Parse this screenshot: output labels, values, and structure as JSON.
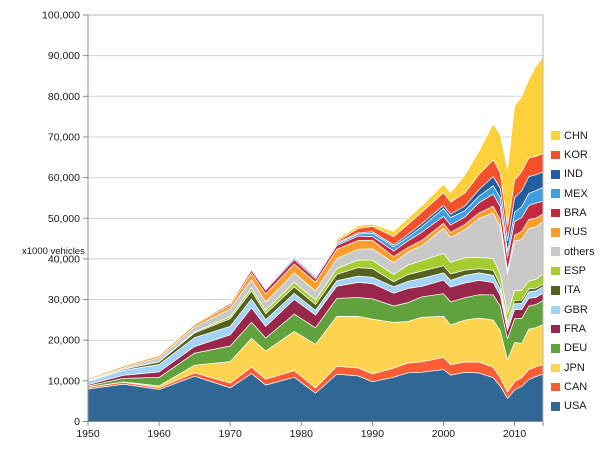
{
  "chart_data": {
    "type": "area",
    "stacked": true,
    "title": "",
    "xlabel": "",
    "ylabel": "x1000 vehicles",
    "unit": "x1000 vehicles",
    "xlim": [
      1950,
      2014
    ],
    "ylim": [
      0,
      100000
    ],
    "grid": true,
    "legend_position": "right",
    "legend_order_top_to_bottom": [
      "CHN",
      "KOR",
      "IND",
      "MEX",
      "BRA",
      "RUS",
      "others",
      "ESP",
      "ITA",
      "GBR",
      "FRA",
      "DEU",
      "JPN",
      "CAN",
      "USA"
    ],
    "x_ticks": [
      1950,
      1960,
      1970,
      1980,
      1990,
      2000,
      2010
    ],
    "y_ticks": [
      0,
      10000,
      20000,
      30000,
      40000,
      50000,
      60000,
      70000,
      80000,
      90000,
      100000
    ],
    "y_tick_labels": [
      "0",
      "10,000",
      "20,000",
      "30,000",
      "40,000",
      "50,000",
      "60,000",
      "70,000",
      "80,000",
      "90,000",
      "100,000"
    ],
    "x": [
      1950,
      1955,
      1960,
      1965,
      1970,
      1973,
      1975,
      1979,
      1982,
      1985,
      1988,
      1990,
      1993,
      1995,
      1997,
      2000,
      2001,
      2003,
      2005,
      2007,
      2008,
      2009,
      2010,
      2011,
      2012,
      2013,
      2014
    ],
    "series": [
      {
        "name": "USA",
        "color": "#2F6795",
        "values": [
          8006,
          9204,
          7905,
          11138,
          8284,
          11800,
          8987,
          10900,
          6986,
          11653,
          11214,
          9783,
          10898,
          11985,
          12119,
          12800,
          11425,
          12115,
          11947,
          10781,
          8672,
          5709,
          7743,
          8662,
          10336,
          11066,
          11661
        ]
      },
      {
        "name": "CAN",
        "color": "#FA5C35",
        "values": [
          388,
          452,
          398,
          847,
          1160,
          1575,
          1424,
          1632,
          1276,
          1933,
          1977,
          1928,
          2246,
          2408,
          2571,
          2962,
          2533,
          2553,
          2688,
          2578,
          2082,
          1490,
          2068,
          2135,
          2463,
          2380,
          2394
        ]
      },
      {
        "name": "JPN",
        "color": "#FCD44F",
        "values": [
          32,
          69,
          482,
          1876,
          5289,
          7083,
          6942,
          9636,
          10732,
          12271,
          12700,
          13487,
          11228,
          10196,
          10975,
          10141,
          9777,
          10286,
          10800,
          11596,
          11576,
          7934,
          9629,
          8399,
          9943,
          9630,
          9775
        ]
      },
      {
        "name": "DEU",
        "color": "#60A33E",
        "values": [
          306,
          909,
          2055,
          2976,
          3842,
          3949,
          3186,
          4250,
          4063,
          4446,
          4625,
          4977,
          4032,
          4667,
          5023,
          5527,
          5692,
          5507,
          5758,
          6213,
          6046,
          5210,
          5906,
          6147,
          5649,
          5718,
          5908
        ]
      },
      {
        "name": "FRA",
        "color": "#98274B",
        "values": [
          357,
          725,
          1369,
          1616,
          2750,
          3569,
          2861,
          3613,
          3149,
          3016,
          3698,
          3769,
          3156,
          3475,
          2580,
          3348,
          3628,
          3620,
          3549,
          3016,
          2569,
          2048,
          2228,
          2243,
          1968,
          1740,
          1821
        ]
      },
      {
        "name": "GBR",
        "color": "#A5D3F5",
        "values": [
          784,
          1237,
          1811,
          2177,
          2098,
          2164,
          1648,
          1478,
          1156,
          1314,
          1545,
          1566,
          1569,
          1765,
          1936,
          1814,
          1685,
          1846,
          1803,
          1750,
          1650,
          1090,
          1393,
          1464,
          1577,
          1598,
          1599
        ]
      },
      {
        "name": "ITA",
        "color": "#55611E",
        "values": [
          128,
          269,
          645,
          1176,
          1854,
          1958,
          1459,
          1632,
          1453,
          1573,
          2111,
          2121,
          1267,
          1667,
          1828,
          1738,
          1580,
          1322,
          1038,
          1284,
          1024,
          843,
          838,
          790,
          672,
          658,
          698
        ]
      },
      {
        "name": "ESP",
        "color": "#A5CD32",
        "values": [
          1,
          14,
          58,
          229,
          536,
          822,
          814,
          1122,
          1070,
          1418,
          1866,
          2053,
          1768,
          2334,
          2562,
          3033,
          2850,
          3030,
          2752,
          2890,
          2541,
          2170,
          2388,
          2354,
          1979,
          2163,
          2403
        ]
      },
      {
        "name": "others",
        "color": "#C9C9C9",
        "values": [
          200,
          300,
          1000,
          1200,
          1900,
          2000,
          2100,
          2300,
          2200,
          2500,
          2600,
          2800,
          2900,
          3200,
          3700,
          6200,
          6100,
          6900,
          9600,
          11200,
          11700,
          9900,
          12200,
          12600,
          12900,
          12900,
          12900
        ]
      },
      {
        "name": "RUS",
        "color": "#FD9E2C",
        "values": [
          363,
          445,
          524,
          616,
          916,
          1602,
          1964,
          2173,
          2173,
          2232,
          2200,
          2120,
          1500,
          1100,
          1280,
          1206,
          1251,
          1280,
          1355,
          1660,
          1790,
          725,
          1403,
          1988,
          2233,
          2192,
          1895
        ]
      },
      {
        "name": "BRA",
        "color": "#C22A42",
        "values": [
          0,
          1,
          133,
          185,
          416,
          750,
          930,
          1128,
          859,
          967,
          1069,
          914,
          1391,
          1629,
          2070,
          1682,
          1817,
          1828,
          2531,
          2977,
          3216,
          3183,
          3382,
          3406,
          3403,
          3712,
          3146
        ]
      },
      {
        "name": "MEX",
        "color": "#3E9EDE",
        "values": [
          21,
          39,
          50,
          97,
          193,
          286,
          361,
          444,
          473,
          398,
          513,
          821,
          1080,
          935,
          1338,
          1936,
          1841,
          1575,
          1624,
          2095,
          2168,
          1561,
          2342,
          2681,
          3002,
          3055,
          3365
        ]
      },
      {
        "name": "IND",
        "color": "#235FA0",
        "values": [
          15,
          25,
          55,
          70,
          76,
          95,
          93,
          110,
          150,
          235,
          310,
          364,
          400,
          636,
          750,
          801,
          815,
          1161,
          1639,
          2254,
          2332,
          2642,
          3557,
          3927,
          4145,
          3898,
          3840
        ]
      },
      {
        "name": "KOR",
        "color": "#F4502B",
        "values": [
          0,
          0,
          0,
          1,
          29,
          26,
          37,
          204,
          163,
          378,
          1084,
          1322,
          2050,
          2526,
          2818,
          3115,
          2946,
          3178,
          3699,
          4086,
          3827,
          3513,
          4272,
          4657,
          4562,
          4521,
          4525
        ]
      },
      {
        "name": "CHN",
        "color": "#FCD139",
        "values": [
          0,
          0,
          23,
          40,
          87,
          110,
          140,
          186,
          196,
          437,
          646,
          509,
          1297,
          1453,
          1580,
          2069,
          2334,
          4444,
          5708,
          8882,
          9299,
          13791,
          18265,
          18419,
          19272,
          22117,
          23723
        ]
      }
    ],
    "colors": {
      "grid_line": "#d4d4d4",
      "axis_line": "#8c8c8c",
      "frame_line": "#b7b7b7",
      "band_separator": "#ffffff",
      "text": "#1a1a1a"
    }
  }
}
